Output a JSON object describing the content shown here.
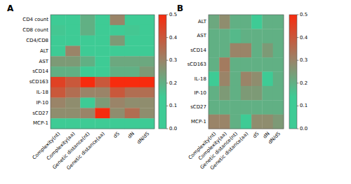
{
  "chart_data": [
    {
      "type": "heatmap",
      "title": "A",
      "x": [
        "Complexity(nt)",
        "Complexity(aa)",
        "Genetic distance(nt)",
        "Genetic distance(aa)",
        "dS",
        "dN",
        "dN/dS"
      ],
      "y": [
        "CD4 count",
        "CD8 count",
        "CD4/CD8",
        "ALT",
        "AST",
        "sCD14",
        "sCD163",
        "IL-18",
        "IP-10",
        "sCD27",
        "MCP-1"
      ],
      "values": [
        [
          0.1,
          0.1,
          0.2,
          0.1,
          0.3,
          0.1,
          0.1
        ],
        [
          0.15,
          0.05,
          0.2,
          0.1,
          0.1,
          0.15,
          0.05
        ],
        [
          0.1,
          0.1,
          0.1,
          0.1,
          0.25,
          0.1,
          0.1
        ],
        [
          0.05,
          0.3,
          0.05,
          0.05,
          0.05,
          0.05,
          0.05
        ],
        [
          0.25,
          0.25,
          0.2,
          0.1,
          0.22,
          0.22,
          0.22
        ],
        [
          0.2,
          0.2,
          0.05,
          0.05,
          0.2,
          0.2,
          0.25
        ],
        [
          0.45,
          0.4,
          0.5,
          0.4,
          0.5,
          0.5,
          0.5
        ],
        [
          0.4,
          0.35,
          0.3,
          0.3,
          0.4,
          0.35,
          0.35
        ],
        [
          0.3,
          0.28,
          0.08,
          0.25,
          0.3,
          0.28,
          0.28
        ],
        [
          0.28,
          0.28,
          0.3,
          0.5,
          0.28,
          0.35,
          0.28
        ],
        [
          0.1,
          0.1,
          0.1,
          0.1,
          0.1,
          0.1,
          0.1
        ]
      ],
      "colorscale": [
        [
          0.0,
          "#3ecb95"
        ],
        [
          0.28,
          "#3ecb95"
        ],
        [
          0.6,
          "#9a8468"
        ],
        [
          1.0,
          "#f72b0e"
        ]
      ],
      "colorbar": {
        "range": [
          0,
          0.5
        ],
        "ticks": [
          {
            "value": 0,
            "label": "0.0"
          },
          0.1,
          0.2,
          0.3,
          0.4,
          0.5
        ]
      }
    },
    {
      "type": "heatmap",
      "title": "B",
      "x": [
        "Complexity(nt)",
        "Complexity(aa)",
        "Genetic distance(nt)",
        "Genetic distance(aa)",
        "dS",
        "dN",
        "dN/dS"
      ],
      "y": [
        "ALT",
        "AST",
        "sCD14",
        "sCD163",
        "IL-18",
        "IP-10",
        "sCD27",
        "MCP-1"
      ],
      "values": [
        [
          0.22,
          0.28,
          0.2,
          0.2,
          0.08,
          0.2,
          0.2
        ],
        [
          0.2,
          0.2,
          0.18,
          0.2,
          0.2,
          0.2,
          0.2
        ],
        [
          0.2,
          0.2,
          0.3,
          0.3,
          0.2,
          0.25,
          0.2
        ],
        [
          0.2,
          0.32,
          0.2,
          0.2,
          0.2,
          0.2,
          0.2
        ],
        [
          0.12,
          0.3,
          0.2,
          0.3,
          0.28,
          0.12,
          0.2
        ],
        [
          0.2,
          0.25,
          0.2,
          0.25,
          0.25,
          0.2,
          0.2
        ],
        [
          0.2,
          0.2,
          0.2,
          0.2,
          0.2,
          0.2,
          0.2
        ],
        [
          0.3,
          0.3,
          0.2,
          0.08,
          0.28,
          0.28,
          0.25
        ]
      ],
      "colorscale": [
        [
          0.0,
          "#3ecb95"
        ],
        [
          0.28,
          "#3ecb95"
        ],
        [
          0.6,
          "#9a8468"
        ],
        [
          1.0,
          "#f72b0e"
        ]
      ],
      "colorbar": {
        "range": [
          0,
          0.5
        ],
        "ticks": [
          {
            "value": 0,
            "label": "0.0"
          },
          0.1,
          0.2,
          0.3,
          0.4,
          0.5
        ]
      }
    }
  ]
}
